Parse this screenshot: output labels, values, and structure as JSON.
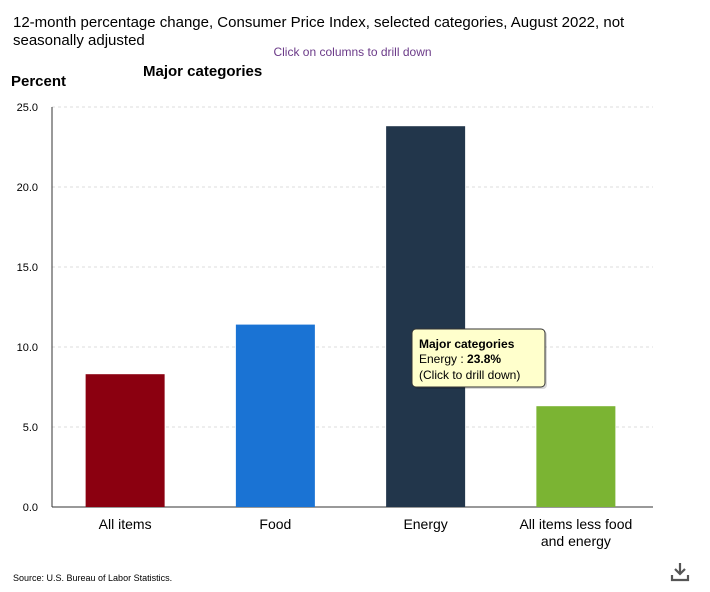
{
  "header": {
    "title": "12-month percentage change, Consumer Price Index, selected categories, August 2022, not seasonally adjusted",
    "drill_hint": "Click on columns to drill down"
  },
  "footer": {
    "source": "Source: U.S. Bureau of Labor Statistics."
  },
  "download_icon": "download-icon",
  "chart_data": {
    "type": "bar",
    "title": "12-month percentage change, Consumer Price Index, selected categories, August 2022, not seasonally adjusted",
    "subtitle": "Major categories",
    "ylabel": "Percent",
    "xlabel": "",
    "ylim": [
      0,
      25
    ],
    "yticks": [
      "0.0",
      "5.0",
      "10.0",
      "15.0",
      "20.0",
      "25.0"
    ],
    "categories": [
      "All items",
      "Food",
      "Energy",
      "All items less food and energy"
    ],
    "series": [
      {
        "values": [
          8.3,
          11.4,
          23.8,
          6.3
        ]
      }
    ],
    "colors": [
      "#8b0010",
      "#1a73d4",
      "#22364b",
      "#7bb433"
    ],
    "grid": true,
    "legend": "none",
    "tooltip": {
      "title": "Major categories",
      "category": "Energy",
      "value": "23.8%",
      "hint": "(Click to drill down)"
    }
  }
}
